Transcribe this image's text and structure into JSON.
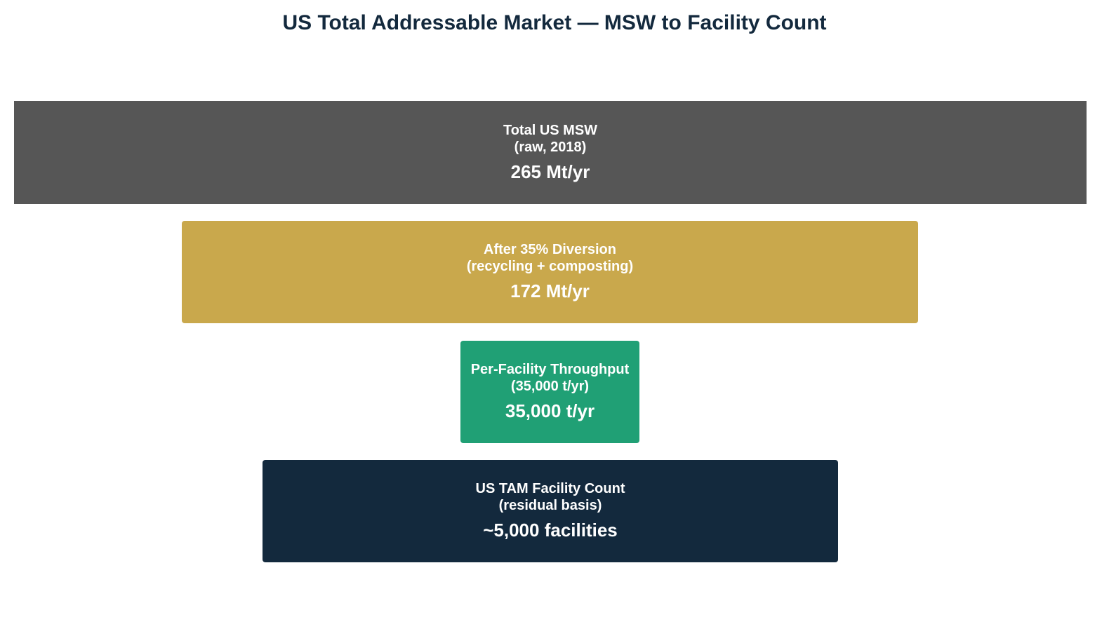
{
  "title": "US Total Addressable Market — MSW to Facility Count",
  "stages": [
    {
      "label_line1": "Total US MSW",
      "label_line2": "(raw, 2018)",
      "value": "265 Mt/yr",
      "color": "#565656"
    },
    {
      "label_line1": "After 35% Diversion",
      "label_line2": "(recycling + composting)",
      "value": "172 Mt/yr",
      "color": "#c9a84c"
    },
    {
      "label_line1": "Per-Facility Throughput",
      "label_line2": "(35,000 t/yr)",
      "value": "35,000 t/yr",
      "color": "#20a075"
    },
    {
      "label_line1": "US TAM Facility Count",
      "label_line2": "(residual basis)",
      "value": "~5,000 facilities",
      "color": "#13293d"
    }
  ]
}
